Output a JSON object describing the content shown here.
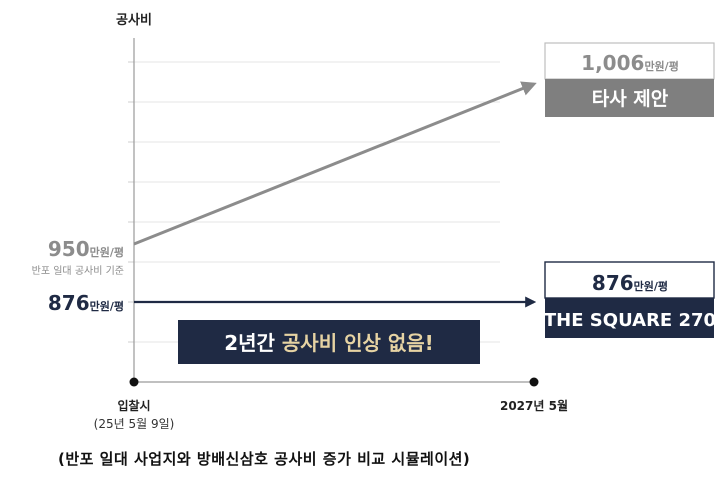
{
  "chart_data": {
    "type": "line",
    "ylabel": "공사비",
    "x_categories": [
      "입찰시",
      "2027년 5월"
    ],
    "x_sublabels": [
      "(25년 5월 9일)",
      ""
    ],
    "series": [
      {
        "name": "타사 제안",
        "values": [
          950,
          1006
        ],
        "color": "#8c8c8c",
        "start_label": {
          "value": "950",
          "unit": "만원/평",
          "note": "반포 일대 공사비 기준"
        },
        "end_label": {
          "value": "1,006",
          "unit": "만원/평"
        }
      },
      {
        "name": "THE SQUARE 270",
        "values": [
          876,
          876
        ],
        "color": "#1f2a44",
        "start_label": {
          "value": "876",
          "unit": "만원/평"
        },
        "end_label": {
          "value": "876",
          "unit": "만원/평"
        }
      }
    ],
    "banner": {
      "prefix": "2년간",
      "highlight": "공사비 인상 없음!"
    },
    "grid": true
  },
  "caption": "(반포 일대 사업지와 방배신삼호 공사비 증가 비교 시뮬레이션)"
}
